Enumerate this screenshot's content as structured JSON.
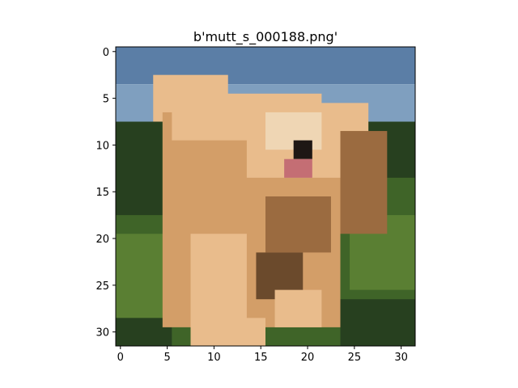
{
  "figure": {
    "title": "b'mutt_s_000188.png'",
    "image_size": [
      32,
      32
    ],
    "x_ticks": [
      0,
      5,
      10,
      15,
      20,
      25,
      30
    ],
    "y_ticks": [
      0,
      5,
      10,
      15,
      20,
      25,
      30
    ],
    "colors": {
      "sky_top": "#5b7ea6",
      "sky_low": "#7f9fbf",
      "grass_dark": "#27401f",
      "grass_mid": "#3f6428",
      "grass_light": "#5a7f33",
      "fur_light": "#e9bc8c",
      "fur_mid": "#d39e68",
      "fur_shadow": "#9b6b40",
      "fur_dark": "#6b4a2c",
      "face_pale": "#efd6b4",
      "nose": "#1e1714",
      "tongue": "#c46e74",
      "axis": "#000000",
      "background": "#ffffff"
    }
  }
}
